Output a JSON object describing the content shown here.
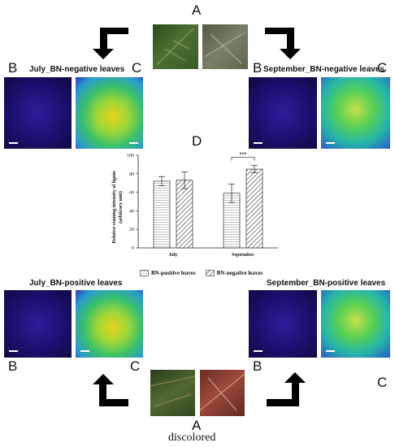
{
  "labels": {
    "A_top": "A",
    "B_top_left": "B",
    "C_top_left": "C",
    "B_top_right": "B",
    "C_top_right": "C",
    "D": "D",
    "B_bottom_left": "B",
    "C_bottom_left": "C",
    "B_bottom_right": "B",
    "C_bottom_right": "C",
    "A_bottom": "A",
    "discolored": "discolored"
  },
  "panel_titles": {
    "july_negative": "July_BN-negative leaves",
    "september_negative": "September_BN-negative leaves",
    "july_positive": "July_BN-positive leaves",
    "september_positive": "September_BN-positive leaves"
  },
  "colors": {
    "arrow": "#000000",
    "fluor_blue": "#1a0f6b",
    "scale_bar": "#ffffff"
  },
  "chart_data": {
    "type": "bar",
    "categories": [
      "July",
      "September"
    ],
    "series": [
      {
        "name": "BN-positive leaves",
        "values": [
          72,
          59
        ],
        "errors": [
          5,
          10
        ],
        "pattern": "horizontal-lines"
      },
      {
        "name": "BN-negative leaves",
        "values": [
          73,
          85
        ],
        "errors": [
          9,
          4
        ],
        "pattern": "diagonal-hatch"
      }
    ],
    "ylabel_line1": "Relative staining intensity of lignin",
    "ylabel_line2": "(arbitrary unit)",
    "yticks": [
      "0",
      "20",
      "40",
      "60",
      "80",
      "100"
    ],
    "ylim": [
      0,
      100
    ],
    "significance": "***",
    "legend_position": "bottom"
  }
}
